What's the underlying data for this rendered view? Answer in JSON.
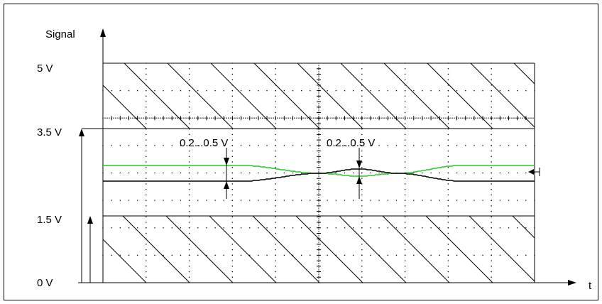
{
  "diagram": {
    "y_axis_label": "Signal",
    "x_axis_label": "t",
    "levels": [
      {
        "label": "5 V",
        "value": 5
      },
      {
        "label": "3.5 V",
        "value": 3.5
      },
      {
        "label": "1.5 V",
        "value": 1.5
      },
      {
        "label": "0 V",
        "value": 0
      }
    ],
    "annotations": [
      {
        "text": "0.2...0.5 V"
      },
      {
        "text": "0.2...0.5 V"
      }
    ],
    "colors": {
      "signal_high": "#22cc22",
      "signal_low": "#000000",
      "grid": "#000000",
      "hatch": "#000000"
    }
  }
}
